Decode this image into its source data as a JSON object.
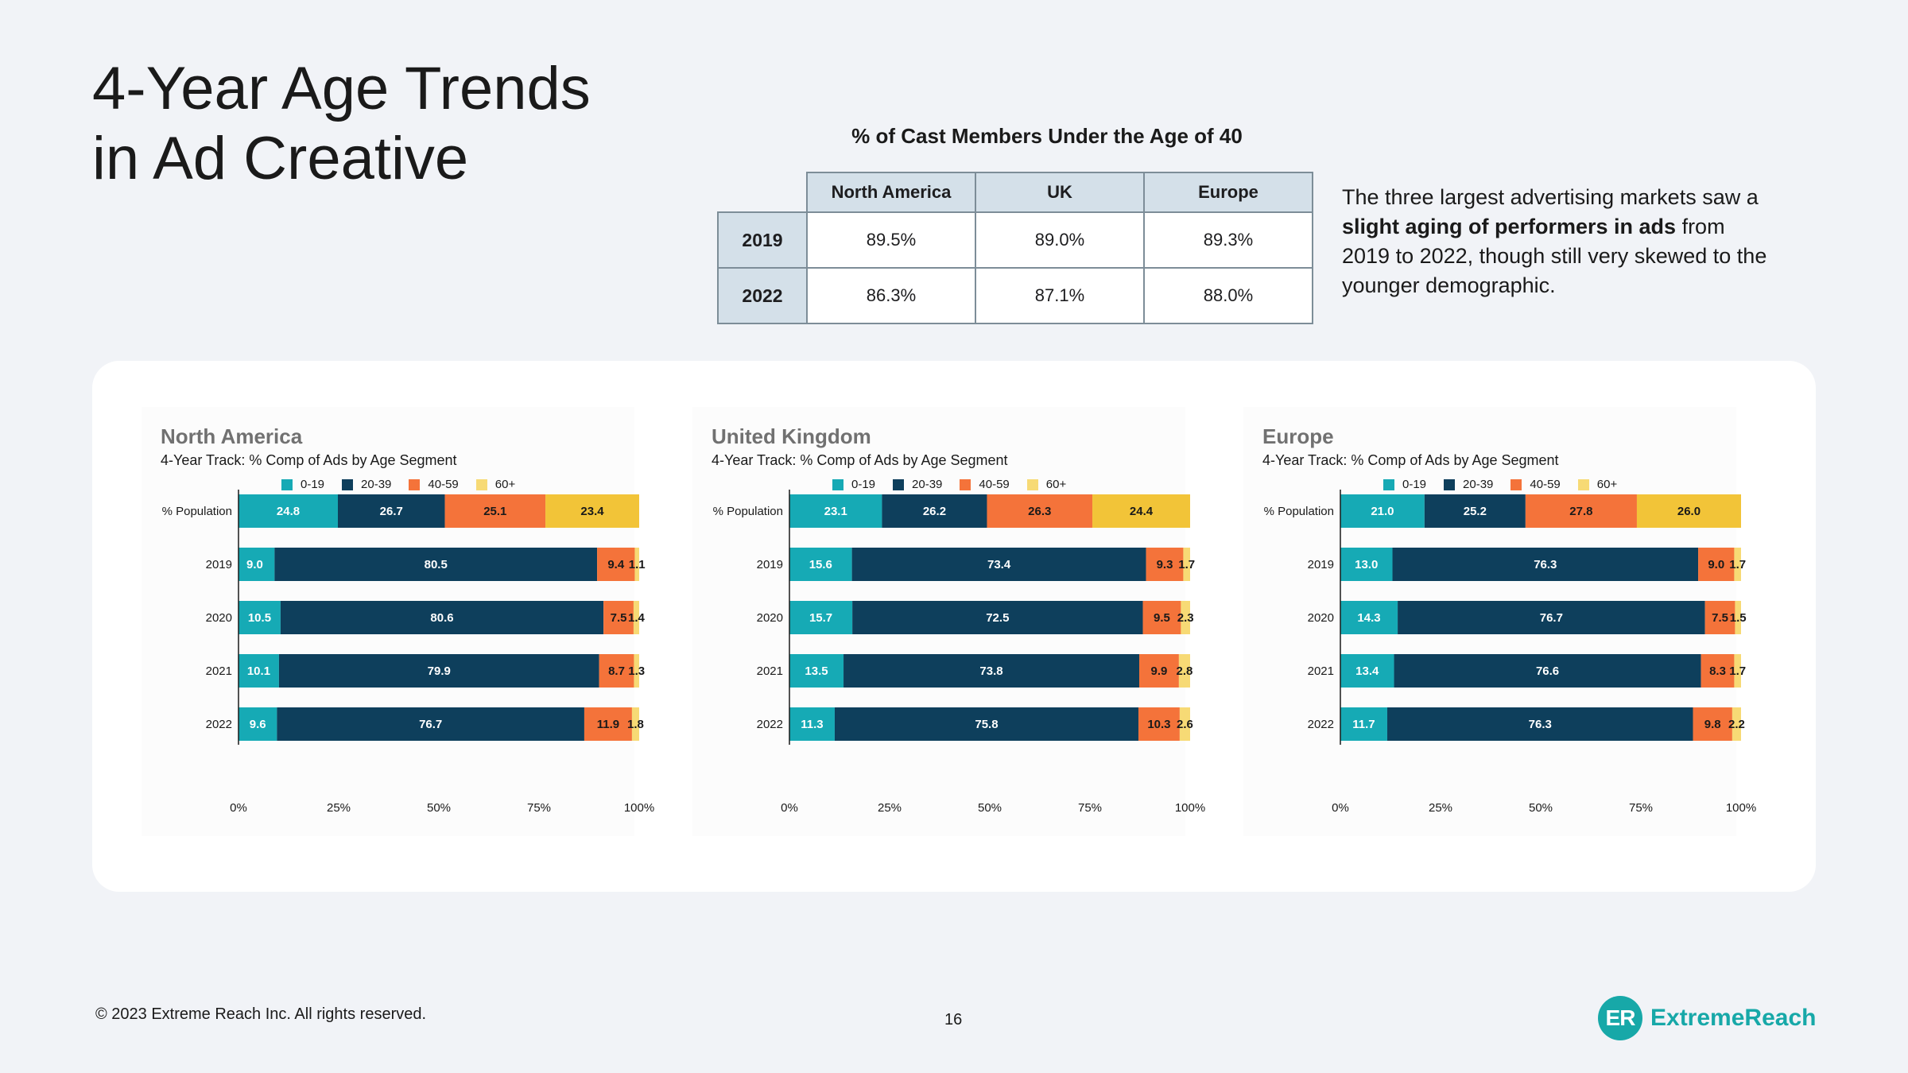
{
  "title": {
    "line1": "4-Year Age Trends",
    "line2": "in Ad Creative"
  },
  "cast_table": {
    "title": "% of Cast Members Under the Age of 40",
    "columns": [
      "North America",
      "UK",
      "Europe"
    ],
    "rows": [
      {
        "year": "2019",
        "values": [
          "89.5%",
          "89.0%",
          "89.3%"
        ]
      },
      {
        "year": "2022",
        "values": [
          "86.3%",
          "87.1%",
          "88.0%"
        ]
      }
    ]
  },
  "blurb": {
    "before": "The three largest advertising markets saw a ",
    "bold": "slight aging of performers in ads",
    "after": " from 2019 to 2022, though still very skewed to the younger demographic."
  },
  "colors": {
    "s0": "#16aab5",
    "s1": "#0e3f5c",
    "s2": "#f4733a",
    "s3": "#f2c438",
    "s3_light": "#f7da75"
  },
  "chart_data": [
    {
      "type": "bar",
      "orientation": "horizontal",
      "stacked": true,
      "title": "North America",
      "subtitle": "4-Year Track: % Comp of Ads by Age Segment",
      "categories": [
        "% Population",
        "2019",
        "2020",
        "2021",
        "2022"
      ],
      "series": [
        {
          "name": "0-19",
          "values": [
            24.8,
            9.0,
            10.5,
            10.1,
            9.6
          ]
        },
        {
          "name": "20-39",
          "values": [
            26.7,
            80.5,
            80.6,
            79.9,
            76.7
          ]
        },
        {
          "name": "40-59",
          "values": [
            25.1,
            9.4,
            7.5,
            8.7,
            11.9
          ]
        },
        {
          "name": "60+",
          "values": [
            23.4,
            1.1,
            1.4,
            1.3,
            1.8
          ]
        }
      ],
      "xlim": [
        0,
        100
      ],
      "xticks": [
        "0%",
        "25%",
        "50%",
        "75%",
        "100%"
      ],
      "legend": "top"
    },
    {
      "type": "bar",
      "orientation": "horizontal",
      "stacked": true,
      "title": "United Kingdom",
      "subtitle": "4-Year Track: % Comp of Ads by Age Segment",
      "categories": [
        "% Population",
        "2019",
        "2020",
        "2021",
        "2022"
      ],
      "series": [
        {
          "name": "0-19",
          "values": [
            23.1,
            15.6,
            15.7,
            13.5,
            11.3
          ]
        },
        {
          "name": "20-39",
          "values": [
            26.2,
            73.4,
            72.5,
            73.8,
            75.8
          ]
        },
        {
          "name": "40-59",
          "values": [
            26.3,
            9.3,
            9.5,
            9.9,
            10.3
          ]
        },
        {
          "name": "60+",
          "values": [
            24.4,
            1.7,
            2.3,
            2.8,
            2.6
          ]
        }
      ],
      "xlim": [
        0,
        100
      ],
      "xticks": [
        "0%",
        "25%",
        "50%",
        "75%",
        "100%"
      ],
      "legend": "top"
    },
    {
      "type": "bar",
      "orientation": "horizontal",
      "stacked": true,
      "title": "Europe",
      "subtitle": "4-Year Track: % Comp of Ads by Age Segment",
      "categories": [
        "% Population",
        "2019",
        "2020",
        "2021",
        "2022"
      ],
      "series": [
        {
          "name": "0-19",
          "values": [
            21.0,
            13.0,
            14.3,
            13.4,
            11.7
          ]
        },
        {
          "name": "20-39",
          "values": [
            25.2,
            76.3,
            76.7,
            76.6,
            76.3
          ]
        },
        {
          "name": "40-59",
          "values": [
            27.8,
            9.0,
            7.5,
            8.3,
            9.8
          ]
        },
        {
          "name": "60+",
          "values": [
            26.0,
            1.7,
            1.5,
            1.7,
            2.2
          ]
        }
      ],
      "xlim": [
        0,
        100
      ],
      "xticks": [
        "0%",
        "25%",
        "50%",
        "75%",
        "100%"
      ],
      "legend": "top"
    }
  ],
  "footer": {
    "copyright": "© 2023 Extreme Reach Inc. All rights reserved.",
    "page": "16"
  },
  "logo": {
    "mark": "ER",
    "word": "ExtremeReach"
  }
}
